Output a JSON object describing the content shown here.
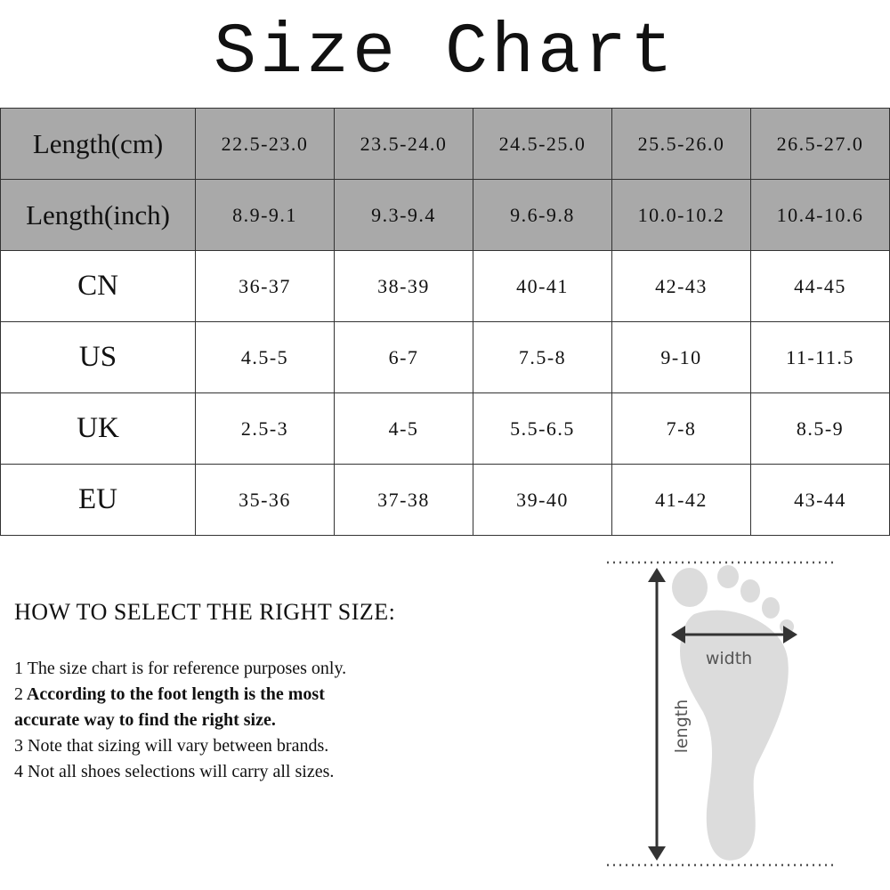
{
  "title": "Size Chart",
  "table": {
    "rows": [
      {
        "label": "Length(cm)",
        "values": [
          "22.5-23.0",
          "23.5-24.0",
          "24.5-25.0",
          "25.5-26.0",
          "26.5-27.0"
        ]
      },
      {
        "label": "Length(inch)",
        "values": [
          "8.9-9.1",
          "9.3-9.4",
          "9.6-9.8",
          "10.0-10.2",
          "10.4-10.6"
        ]
      },
      {
        "label": "CN",
        "values": [
          "36-37",
          "38-39",
          "40-41",
          "42-43",
          "44-45"
        ]
      },
      {
        "label": "US",
        "values": [
          "4.5-5",
          "6-7",
          "7.5-8",
          "9-10",
          "11-11.5"
        ]
      },
      {
        "label": "UK",
        "values": [
          "2.5-3",
          "4-5",
          "5.5-6.5",
          "7-8",
          "8.5-9"
        ]
      },
      {
        "label": "EU",
        "values": [
          "35-36",
          "37-38",
          "39-40",
          "41-42",
          "43-44"
        ]
      }
    ],
    "header_fill": "#a9a9a9"
  },
  "instructions": {
    "heading": "HOW TO SELECT THE RIGHT SIZE:",
    "notes": [
      {
        "num": "1",
        "text": "The size chart is for reference purposes only."
      },
      {
        "num": "2",
        "text": "According to the foot length is the most",
        "text2": "accurate way to find the right size."
      },
      {
        "num": "3",
        "text": "Note that sizing will vary between brands."
      },
      {
        "num": "4",
        "text": "Not all shoes selections will carry all sizes."
      }
    ]
  },
  "diagram": {
    "width_label": "width",
    "length_label": "length",
    "foot_color": "#dcdcdc"
  }
}
